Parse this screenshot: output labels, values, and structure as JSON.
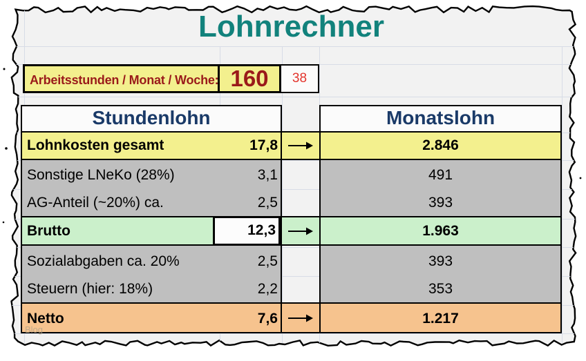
{
  "title": "Lohnrechner",
  "watermark": "Blog",
  "hours": {
    "label": "Arbeitsstunden / Monat / Woche:",
    "per_month": "160",
    "per_week": "38"
  },
  "headers": {
    "hourly": "Stundenlohn",
    "monthly": "Monatslohn"
  },
  "rows": [
    {
      "label": "Lohnkosten gesamt",
      "hourly": "17,8",
      "monthly": "2.846",
      "band": "yellow",
      "emphasis": true,
      "arrow": true
    },
    {
      "label": "Sonstige LNeKo (28%)",
      "hourly": "3,1",
      "monthly": "491",
      "band": "gray",
      "emphasis": false,
      "arrow": false
    },
    {
      "label": "AG-Anteil (~20%) ca.",
      "hourly": "2,5",
      "monthly": "393",
      "band": "gray",
      "emphasis": false,
      "arrow": false
    },
    {
      "label": "Brutto",
      "hourly": "12,3",
      "monthly": "1.963",
      "band": "green",
      "emphasis": true,
      "arrow": true
    },
    {
      "label": "Sozialabgaben ca. 20%",
      "hourly": "2,5",
      "monthly": "393",
      "band": "gray",
      "emphasis": false,
      "arrow": false
    },
    {
      "label": "Steuern (hier: 18%)",
      "hourly": "2,2",
      "monthly": "353",
      "band": "gray",
      "emphasis": false,
      "arrow": false
    },
    {
      "label": "Netto",
      "hourly": "7,6",
      "monthly": "1.217",
      "band": "orange",
      "emphasis": true,
      "arrow": true
    }
  ],
  "colors": {
    "title": "#12827C",
    "header_text": "#1A3A68",
    "band_yellow": "#F3F08E",
    "band_gray": "#BFBFBF",
    "band_green": "#CBF0CB",
    "band_orange": "#F6C38E",
    "hours_text": "#9A1A1A",
    "weekly_text": "#E3342C",
    "sheet": "#F2F2F2",
    "gridline": "#D7DCE6",
    "border": "#000000"
  }
}
